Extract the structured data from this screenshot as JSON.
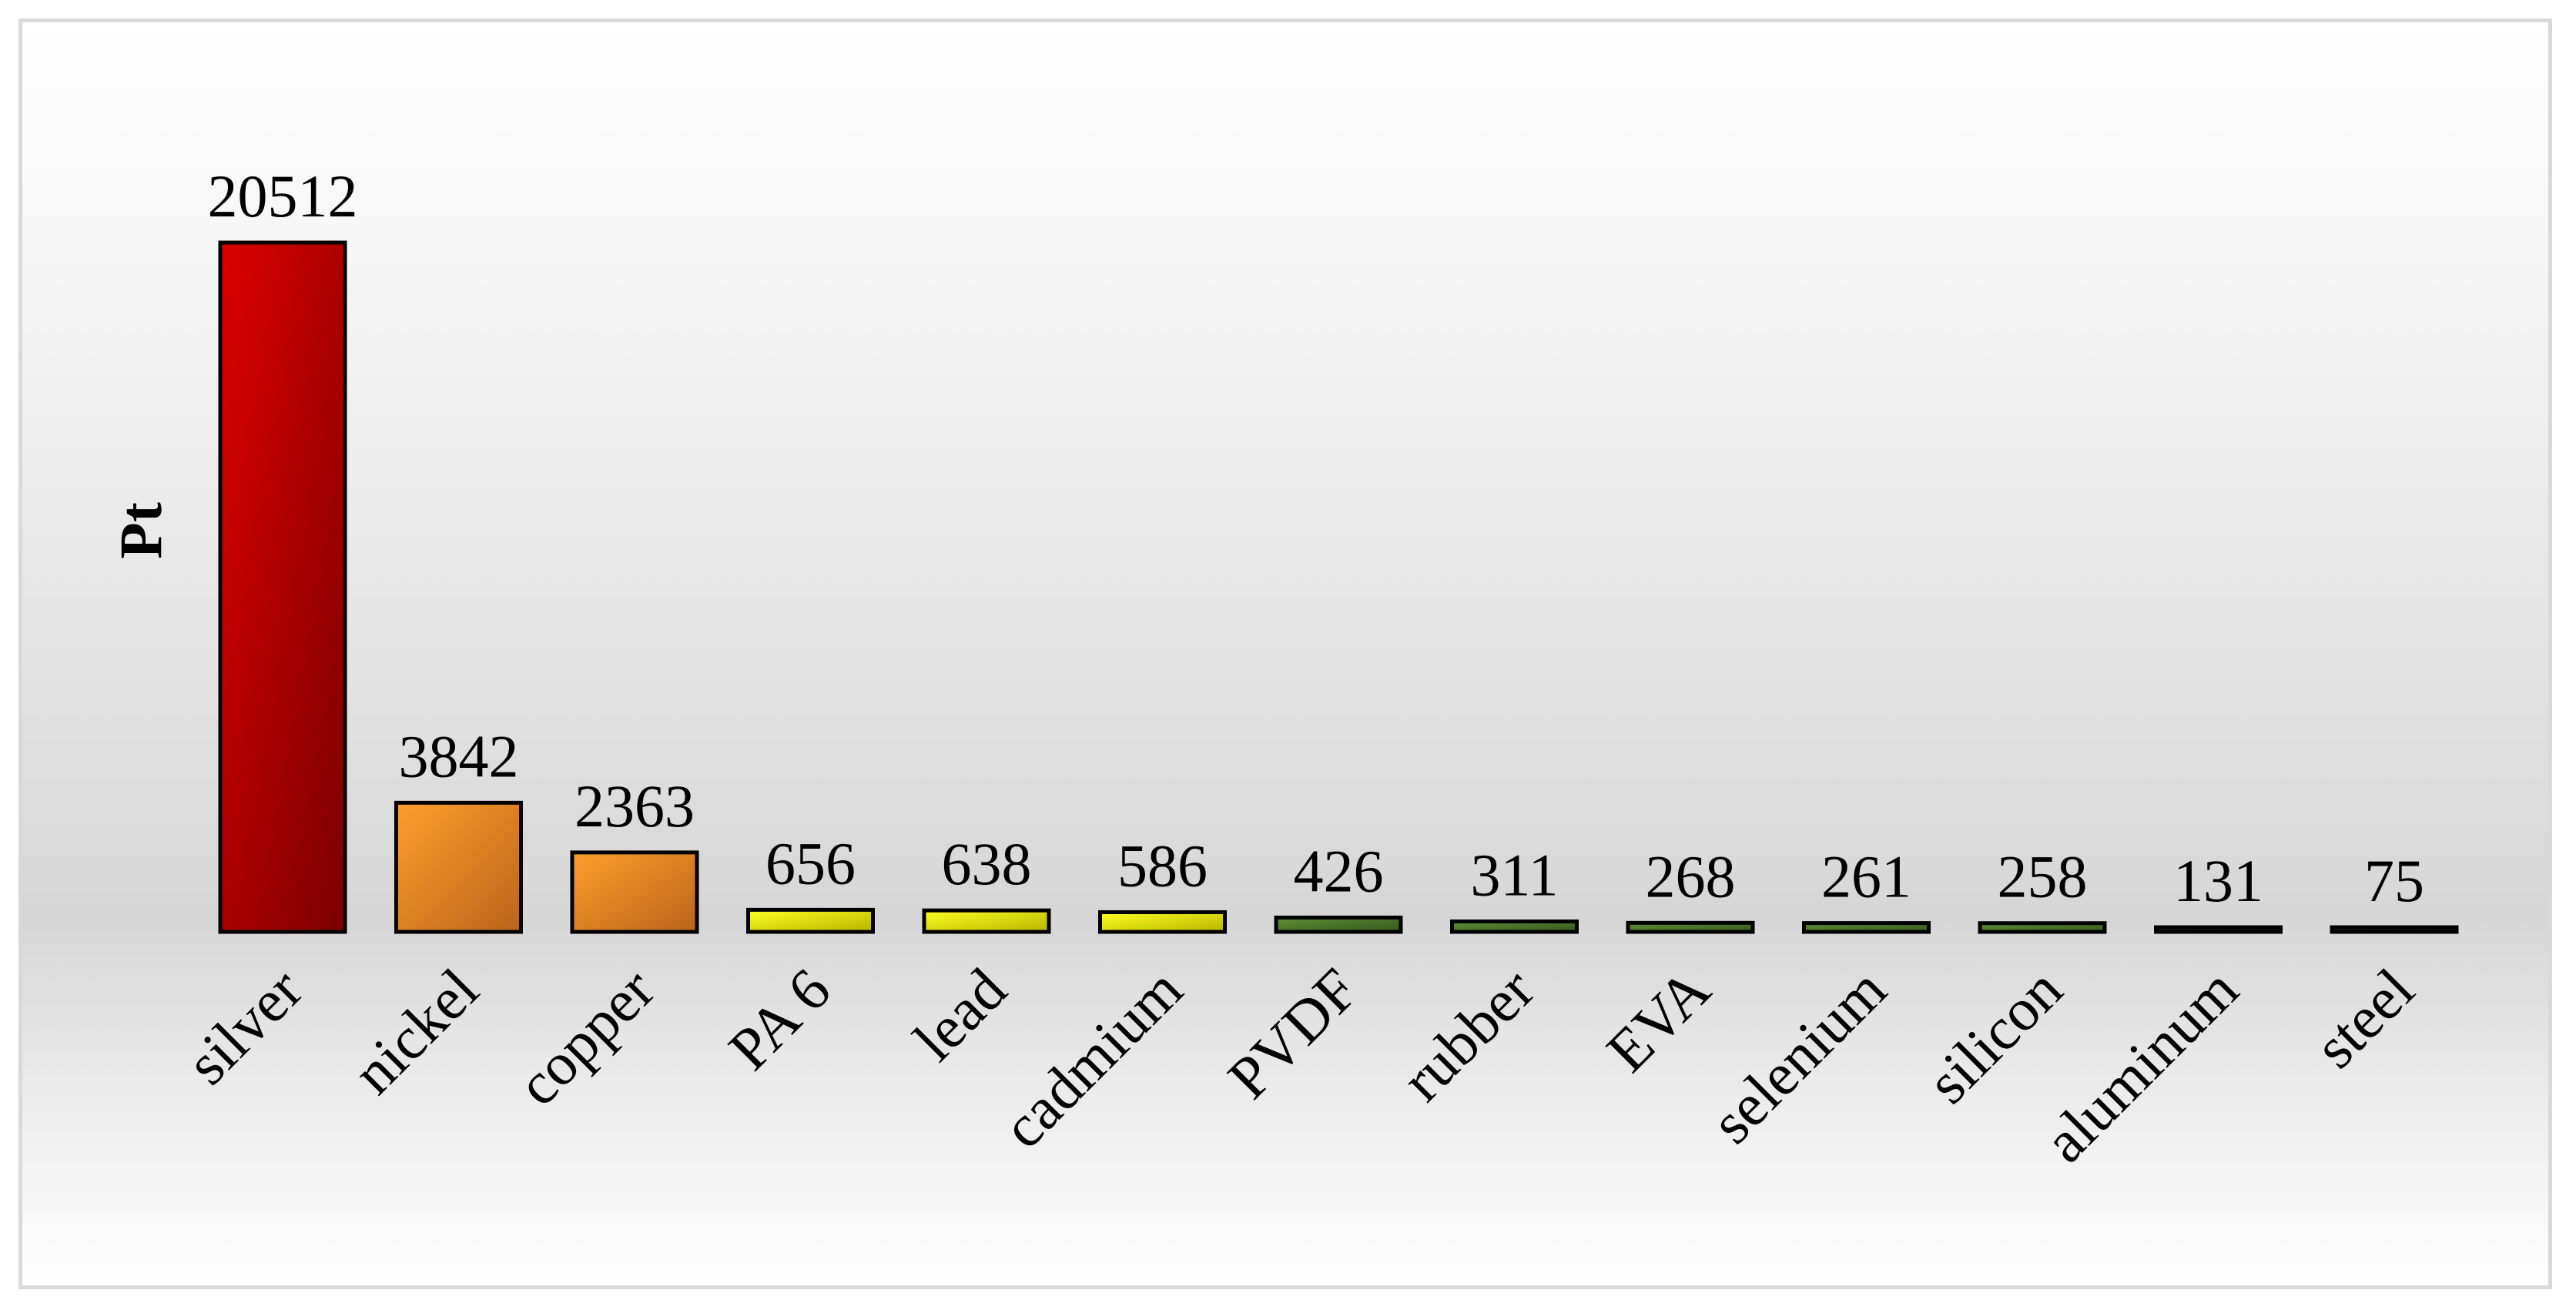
{
  "chart_data": {
    "type": "bar",
    "title": "",
    "xlabel": "",
    "ylabel": "Pt",
    "ylim": [
      0,
      20512
    ],
    "grid": false,
    "legend": "none",
    "categories": [
      "silver",
      "nickel",
      "copper",
      "PA 6",
      "lead",
      "cadmium",
      "PVDF",
      "rubber",
      "EVA",
      "selenium",
      "silicon",
      "aluminum",
      "steel"
    ],
    "values": [
      20512,
      3842,
      2363,
      656,
      638,
      586,
      426,
      311,
      268,
      261,
      258,
      131,
      75
    ],
    "bar_color_groups": [
      {
        "categories": [
          "silver"
        ],
        "color": "#c00000"
      },
      {
        "categories": [
          "nickel",
          "copper"
        ],
        "color": "#f08c1e"
      },
      {
        "categories": [
          "PA 6",
          "lead",
          "cadmium"
        ],
        "color": "#e6e600"
      },
      {
        "categories": [
          "PVDF",
          "rubber",
          "EVA",
          "selenium",
          "silicon"
        ],
        "color": "#4e7a2c"
      },
      {
        "categories": [
          "aluminum",
          "steel"
        ],
        "color": "#1a1a1a"
      }
    ]
  }
}
